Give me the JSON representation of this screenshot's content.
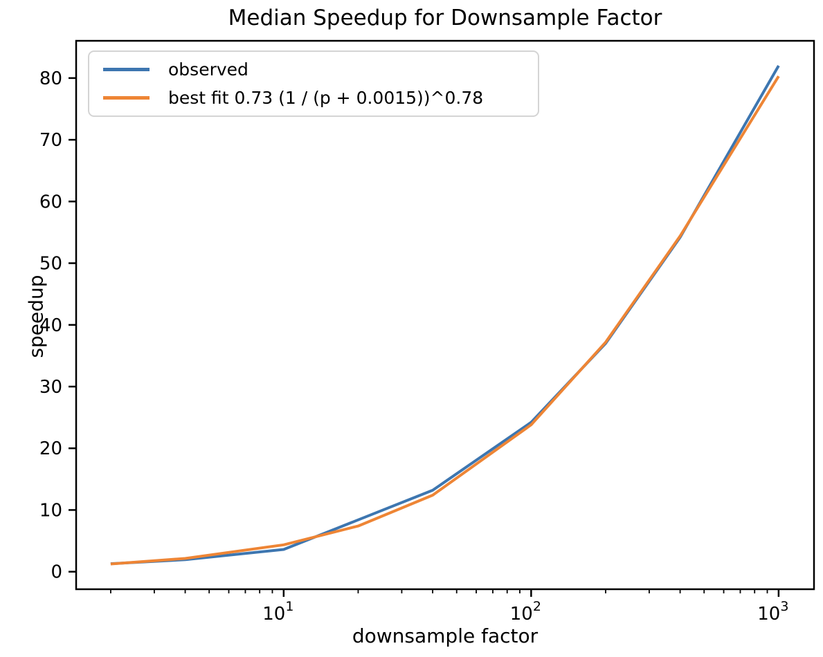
{
  "chart_data": {
    "type": "line",
    "title": "Median Speedup for Downsample Factor",
    "xlabel": "downsample factor",
    "ylabel": "speedup",
    "x_scale": "log",
    "grid": false,
    "legend_position": "upper left",
    "xlim": [
      1.45,
      1390
    ],
    "ylim": [
      -2.84,
      86.04
    ],
    "x_major_ticks": [
      10,
      100,
      1000
    ],
    "x_minor_ticks": [
      2,
      3,
      4,
      5,
      6,
      7,
      8,
      9,
      20,
      30,
      40,
      50,
      60,
      70,
      80,
      90,
      200,
      300,
      400,
      500,
      600,
      700,
      800,
      900
    ],
    "y_ticks": [
      0,
      10,
      20,
      30,
      40,
      50,
      60,
      70,
      80
    ],
    "x": [
      2,
      4,
      10,
      20,
      40,
      100,
      200,
      400,
      1000
    ],
    "series": [
      {
        "name": "observed",
        "color": "#3d76b0",
        "values": [
          1.3,
          1.95,
          3.6,
          8.4,
          13.2,
          24.2,
          37.0,
          54.2,
          82.0
        ]
      },
      {
        "name": "best fit 0.73 (1 / (p + 0.0015))^0.78",
        "color": "#ee8535",
        "values": [
          1.25,
          2.15,
          4.35,
          7.4,
          12.4,
          23.8,
          37.2,
          54.4,
          80.3
        ]
      }
    ]
  },
  "colors": {
    "axes": "#000000",
    "background": "#ffffff",
    "legend_border": "#d4d4d4"
  }
}
